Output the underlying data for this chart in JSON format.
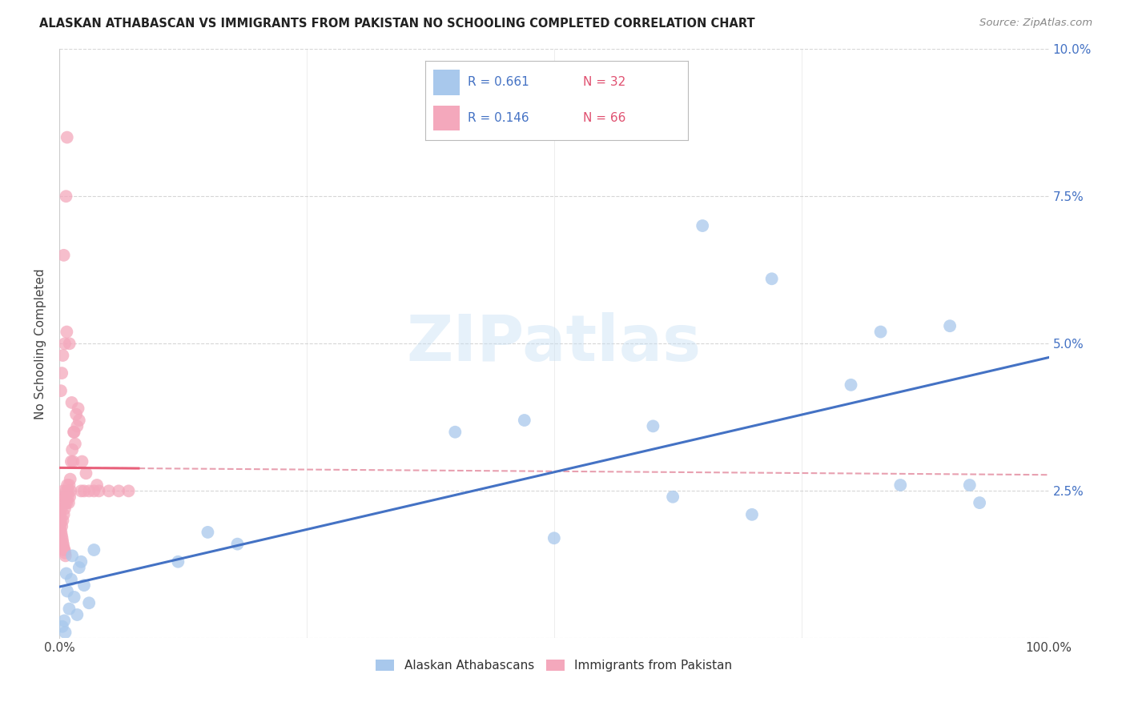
{
  "title": "ALASKAN ATHABASCAN VS IMMIGRANTS FROM PAKISTAN NO SCHOOLING COMPLETED CORRELATION CHART",
  "source": "Source: ZipAtlas.com",
  "ylabel": "No Schooling Completed",
  "xlim": [
    0.0,
    100.0
  ],
  "ylim": [
    0.0,
    10.0
  ],
  "blue_color": "#A8C8EC",
  "pink_color": "#F4A8BC",
  "trendline_blue": "#4472C4",
  "trendline_pink": "#E8607A",
  "trendline_dashed_color": "#E8A0B0",
  "grid_color": "#CCCCCC",
  "blue_points_x": [
    0.5,
    0.8,
    1.0,
    1.2,
    1.5,
    1.8,
    2.0,
    2.2,
    2.5,
    3.0,
    3.5,
    0.3,
    0.7,
    1.3,
    12.0,
    15.0,
    18.0,
    40.0,
    47.0,
    50.0,
    60.0,
    62.0,
    65.0,
    70.0,
    72.0,
    80.0,
    83.0,
    85.0,
    90.0,
    92.0,
    93.0,
    0.6
  ],
  "blue_points_y": [
    0.3,
    0.8,
    0.5,
    1.0,
    0.7,
    0.4,
    1.2,
    1.3,
    0.9,
    0.6,
    1.5,
    0.2,
    1.1,
    1.4,
    1.3,
    1.8,
    1.6,
    3.5,
    3.7,
    1.7,
    3.6,
    2.4,
    7.0,
    2.1,
    6.1,
    4.3,
    5.2,
    2.6,
    5.3,
    2.6,
    2.3,
    0.1
  ],
  "pink_points_x": [
    0.05,
    0.08,
    0.1,
    0.12,
    0.15,
    0.18,
    0.2,
    0.22,
    0.25,
    0.28,
    0.3,
    0.32,
    0.35,
    0.38,
    0.4,
    0.42,
    0.45,
    0.48,
    0.5,
    0.52,
    0.55,
    0.58,
    0.6,
    0.62,
    0.65,
    0.7,
    0.75,
    0.8,
    0.85,
    0.9,
    0.95,
    1.0,
    1.05,
    1.1,
    1.15,
    1.2,
    1.3,
    1.4,
    1.5,
    1.6,
    1.7,
    1.8,
    1.9,
    2.0,
    2.2,
    2.5,
    3.0,
    3.5,
    4.0,
    5.0,
    6.0,
    7.0,
    0.15,
    0.25,
    0.35,
    0.55,
    0.75,
    1.25,
    1.45,
    2.3,
    2.7,
    3.8,
    0.45,
    0.68,
    0.78,
    1.02
  ],
  "pink_points_y": [
    1.9,
    1.85,
    2.1,
    1.95,
    2.0,
    1.8,
    2.2,
    1.75,
    1.9,
    1.7,
    2.3,
    1.65,
    2.0,
    1.6,
    2.5,
    1.55,
    2.1,
    1.5,
    2.4,
    1.5,
    2.2,
    1.45,
    2.3,
    1.4,
    2.4,
    2.5,
    2.3,
    2.6,
    2.4,
    2.5,
    2.3,
    2.6,
    2.4,
    2.7,
    2.5,
    3.0,
    3.2,
    3.0,
    3.5,
    3.3,
    3.8,
    3.6,
    3.9,
    3.7,
    2.5,
    2.5,
    2.5,
    2.5,
    2.5,
    2.5,
    2.5,
    2.5,
    4.2,
    4.5,
    4.8,
    5.0,
    5.2,
    4.0,
    3.5,
    3.0,
    2.8,
    2.6,
    6.5,
    7.5,
    8.5,
    5.0
  ]
}
